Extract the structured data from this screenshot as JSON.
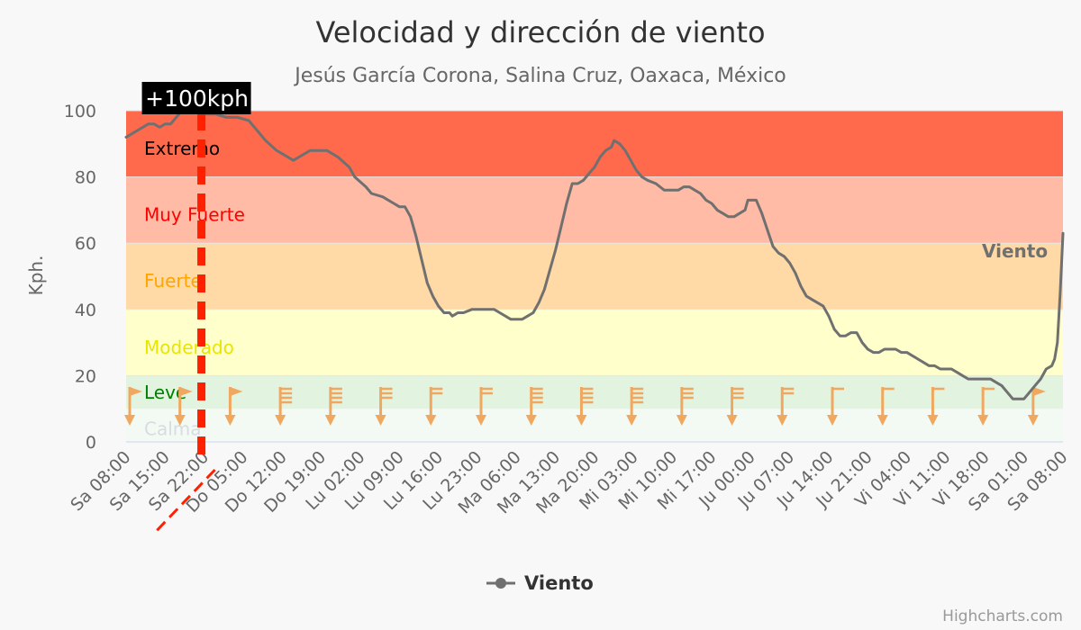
{
  "chart_data": {
    "type": "line",
    "title": "Velocidad y dirección de viento",
    "subtitle": "Jesús García Corona, Salina Cruz, Oaxaca, México",
    "ylabel": "Kph.",
    "ylim": [
      0,
      100
    ],
    "yticks": [
      0,
      20,
      40,
      60,
      80,
      100
    ],
    "grid": true,
    "legend_position": "bottom-center",
    "categories": [
      "Sa 08:00",
      "Sa 15:00",
      "Sa 22:00",
      "Do 05:00",
      "Do 12:00",
      "Do 19:00",
      "Lu 02:00",
      "Lu 09:00",
      "Lu 16:00",
      "Lu 23:00",
      "Ma 06:00",
      "Ma 13:00",
      "Ma 20:00",
      "Mi 03:00",
      "Mi 10:00",
      "Mi 17:00",
      "Ju 00:00",
      "Ju 07:00",
      "Ju 14:00",
      "Ju 21:00",
      "Vi 04:00",
      "Vi 11:00",
      "Vi 18:00",
      "Sa 01:00",
      "Sa 08:00"
    ],
    "x_hours_range": [
      0,
      168
    ],
    "bands": [
      {
        "label": "Calma",
        "from": 0,
        "to": 10,
        "fill": "#f3faf3",
        "text_color": "#d6dde2"
      },
      {
        "label": "Leve",
        "from": 10,
        "to": 20,
        "fill": "#e2f3df",
        "text_color": "#008000"
      },
      {
        "label": "Moderado",
        "from": 20,
        "to": 40,
        "fill": "#ffffcc",
        "text_color": "#e6e600"
      },
      {
        "label": "Fuerte",
        "from": 40,
        "to": 60,
        "fill": "#ffd9a6",
        "text_color": "#ffa500"
      },
      {
        "label": "Muy Fuerte",
        "from": 60,
        "to": 80,
        "fill": "#ffbba5",
        "text_color": "#ff0000"
      },
      {
        "label": "Extremo",
        "from": 80,
        "to": 100,
        "fill": "#ff6a4d",
        "text_color": "#000000"
      }
    ],
    "plotline": {
      "label": "+100kph",
      "x_hours": 13.5,
      "color": "#ff2000"
    },
    "series": [
      {
        "name": "Viento",
        "color": "#707070",
        "points": [
          [
            0,
            92
          ],
          [
            2,
            94
          ],
          [
            4,
            96
          ],
          [
            5,
            96
          ],
          [
            6,
            95
          ],
          [
            7,
            96
          ],
          [
            8,
            96
          ],
          [
            9,
            98
          ],
          [
            10,
            100
          ],
          [
            12,
            100
          ],
          [
            14,
            99
          ],
          [
            16,
            99
          ],
          [
            18,
            98
          ],
          [
            20,
            98
          ],
          [
            22,
            97
          ],
          [
            23,
            95
          ],
          [
            25,
            91
          ],
          [
            27,
            88
          ],
          [
            29,
            86
          ],
          [
            30,
            85
          ],
          [
            31,
            86
          ],
          [
            33,
            88
          ],
          [
            35,
            88
          ],
          [
            36,
            88
          ],
          [
            38,
            86
          ],
          [
            40,
            83
          ],
          [
            41,
            80
          ],
          [
            43,
            77
          ],
          [
            44,
            75
          ],
          [
            46,
            74
          ],
          [
            48,
            72
          ],
          [
            49,
            71
          ],
          [
            50,
            71
          ],
          [
            51,
            68
          ],
          [
            52,
            62
          ],
          [
            53,
            55
          ],
          [
            54,
            48
          ],
          [
            55,
            44
          ],
          [
            56,
            41
          ],
          [
            57,
            39
          ],
          [
            58,
            39
          ],
          [
            58.5,
            38
          ],
          [
            59.5,
            39
          ],
          [
            60.5,
            39
          ],
          [
            62,
            40
          ],
          [
            64,
            40
          ],
          [
            66,
            40
          ],
          [
            67,
            39
          ],
          [
            69,
            37
          ],
          [
            70,
            37
          ],
          [
            71,
            37
          ],
          [
            72,
            38
          ],
          [
            73,
            39
          ],
          [
            74,
            42
          ],
          [
            75,
            46
          ],
          [
            76,
            52
          ],
          [
            77,
            58
          ],
          [
            78,
            65
          ],
          [
            79,
            72
          ],
          [
            80,
            78
          ],
          [
            81,
            78
          ],
          [
            82,
            79
          ],
          [
            83,
            81
          ],
          [
            84,
            83
          ],
          [
            85,
            86
          ],
          [
            86,
            88
          ],
          [
            87,
            89
          ],
          [
            87.5,
            91
          ],
          [
            88.5,
            90
          ],
          [
            89.5,
            88
          ],
          [
            90.5,
            85
          ],
          [
            91.5,
            82
          ],
          [
            92.5,
            80
          ],
          [
            93.5,
            79
          ],
          [
            95,
            78
          ],
          [
            96.5,
            76
          ],
          [
            98,
            76
          ],
          [
            99,
            76
          ],
          [
            100,
            77
          ],
          [
            101,
            77
          ],
          [
            102,
            76
          ],
          [
            103,
            75
          ],
          [
            104,
            73
          ],
          [
            105,
            72
          ],
          [
            106,
            70
          ],
          [
            107,
            69
          ],
          [
            108,
            68
          ],
          [
            109,
            68
          ],
          [
            110,
            69
          ],
          [
            111,
            70
          ],
          [
            111.5,
            73
          ],
          [
            113,
            73
          ],
          [
            114,
            69
          ],
          [
            115,
            64
          ],
          [
            116,
            59
          ],
          [
            117,
            57
          ],
          [
            118,
            56
          ],
          [
            119,
            54
          ],
          [
            120,
            51
          ],
          [
            121,
            47
          ],
          [
            122,
            44
          ],
          [
            123,
            43
          ],
          [
            124,
            42
          ],
          [
            125,
            41
          ],
          [
            126,
            38
          ],
          [
            127,
            34
          ],
          [
            128,
            32
          ],
          [
            129,
            32
          ],
          [
            130,
            33
          ],
          [
            131,
            33
          ],
          [
            132,
            30
          ],
          [
            133,
            28
          ],
          [
            134,
            27
          ],
          [
            135,
            27
          ],
          [
            136,
            28
          ],
          [
            137,
            28
          ],
          [
            138,
            28
          ],
          [
            139,
            27
          ],
          [
            140,
            27
          ],
          [
            141,
            26
          ],
          [
            142,
            25
          ],
          [
            143,
            24
          ],
          [
            144,
            23
          ],
          [
            145,
            23
          ],
          [
            146,
            22
          ],
          [
            147,
            22
          ],
          [
            148,
            22
          ],
          [
            149,
            21
          ],
          [
            150,
            20
          ],
          [
            151,
            19
          ],
          [
            152,
            19
          ],
          [
            153,
            19
          ],
          [
            154,
            19
          ],
          [
            155,
            19
          ],
          [
            156,
            18
          ],
          [
            157,
            17
          ],
          [
            158,
            15
          ],
          [
            159,
            13
          ],
          [
            160,
            13
          ],
          [
            161,
            13
          ],
          [
            162,
            15
          ],
          [
            163,
            17
          ],
          [
            164,
            19
          ],
          [
            165,
            22
          ],
          [
            166,
            23
          ],
          [
            166.5,
            25
          ],
          [
            167,
            30
          ],
          [
            167.5,
            45
          ],
          [
            168,
            63
          ]
        ]
      }
    ],
    "wind_barbs": [
      {
        "x_hours": 0,
        "flags": 0
      },
      {
        "x_hours": 9,
        "flags": 0
      },
      {
        "x_hours": 18,
        "flags": 0
      },
      {
        "x_hours": 27,
        "flags": 4
      },
      {
        "x_hours": 36,
        "flags": 4
      },
      {
        "x_hours": 45,
        "flags": 3
      },
      {
        "x_hours": 54,
        "flags": 2
      },
      {
        "x_hours": 63,
        "flags": 2
      },
      {
        "x_hours": 72,
        "flags": 4
      },
      {
        "x_hours": 81,
        "flags": 4
      },
      {
        "x_hours": 90,
        "flags": 4
      },
      {
        "x_hours": 99,
        "flags": 3
      },
      {
        "x_hours": 108,
        "flags": 3
      },
      {
        "x_hours": 117,
        "flags": 2
      },
      {
        "x_hours": 126,
        "flags": 1
      },
      {
        "x_hours": 135,
        "flags": 1
      },
      {
        "x_hours": 144,
        "flags": 1
      },
      {
        "x_hours": 153,
        "flags": 1
      },
      {
        "x_hours": 162,
        "flags": 0
      }
    ],
    "barb_color": "#f0a860"
  },
  "legend": {
    "label": "Viento"
  },
  "credits": "Highcharts.com"
}
